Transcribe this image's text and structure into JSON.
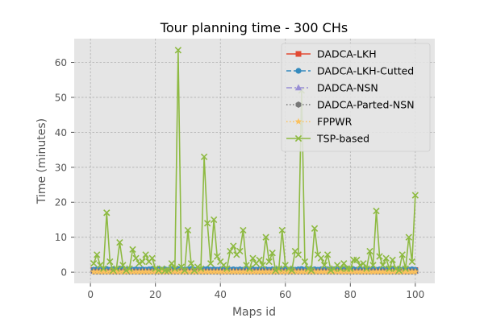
{
  "chart_data": {
    "type": "line",
    "title": "Tour planning time - 300 CHs",
    "xlabel": "Maps id",
    "ylabel": "Time (minutes)",
    "xlim": [
      -5,
      106
    ],
    "ylim": [
      -3.2,
      66.8
    ],
    "xticks": [
      0,
      20,
      40,
      60,
      80,
      100
    ],
    "yticks": [
      0,
      10,
      20,
      30,
      40,
      50,
      60
    ],
    "grid": true,
    "legend_position": "top-right",
    "x": [
      1,
      2,
      3,
      4,
      5,
      6,
      7,
      8,
      9,
      10,
      11,
      12,
      13,
      14,
      15,
      16,
      17,
      18,
      19,
      20,
      21,
      22,
      23,
      24,
      25,
      26,
      27,
      28,
      29,
      30,
      31,
      32,
      33,
      34,
      35,
      36,
      37,
      38,
      39,
      40,
      41,
      42,
      43,
      44,
      45,
      46,
      47,
      48,
      49,
      50,
      51,
      52,
      53,
      54,
      55,
      56,
      57,
      58,
      59,
      60,
      61,
      62,
      63,
      64,
      65,
      66,
      67,
      68,
      69,
      70,
      71,
      72,
      73,
      74,
      75,
      76,
      77,
      78,
      79,
      80,
      81,
      82,
      83,
      84,
      85,
      86,
      87,
      88,
      89,
      90,
      91,
      92,
      93,
      94,
      95,
      96,
      97,
      98,
      99,
      100
    ],
    "series": [
      {
        "name": "DADCA-LKH",
        "color": "#E24A33",
        "marker": "square",
        "line": "solid",
        "values": [
          0.6,
          0.6,
          0.6,
          0.6,
          0.6,
          0.6,
          0.6,
          0.6,
          0.6,
          0.6,
          0.6,
          0.6,
          0.6,
          0.6,
          0.6,
          0.6,
          0.6,
          0.6,
          0.6,
          0.6,
          0.6,
          0.6,
          0.6,
          0.6,
          0.6,
          0.6,
          0.6,
          0.6,
          0.6,
          0.6,
          0.6,
          0.6,
          0.6,
          0.6,
          0.6,
          0.6,
          0.6,
          0.6,
          0.6,
          0.6,
          0.6,
          0.6,
          0.6,
          0.6,
          0.6,
          0.6,
          0.6,
          0.6,
          0.6,
          0.6,
          0.6,
          0.6,
          0.6,
          0.6,
          0.6,
          0.6,
          0.6,
          0.6,
          0.6,
          0.6,
          0.6,
          0.6,
          0.6,
          0.6,
          0.6,
          0.6,
          0.6,
          0.6,
          0.6,
          0.6,
          0.6,
          0.6,
          0.6,
          0.6,
          0.6,
          0.6,
          0.6,
          0.6,
          0.6,
          0.6,
          0.6,
          0.6,
          0.6,
          0.6,
          0.6,
          0.6,
          0.6,
          0.6,
          0.6,
          0.6,
          0.6,
          0.6,
          0.6,
          0.6,
          0.6,
          0.6,
          0.6,
          0.6,
          0.6,
          0.6
        ]
      },
      {
        "name": "DADCA-LKH-Cutted",
        "color": "#348ABD",
        "marker": "circle",
        "line": "dashed",
        "values": [
          0.7,
          0.8,
          0.7,
          0.8,
          0.9,
          0.7,
          0.8,
          0.7,
          1.0,
          0.8,
          0.7,
          0.8,
          0.7,
          0.8,
          0.7,
          0.8,
          0.7,
          0.8,
          0.9,
          0.7,
          0.8,
          0.7,
          0.8,
          0.7,
          0.8,
          0.7,
          0.9,
          0.8,
          0.7,
          0.8,
          0.9,
          0.7,
          0.8,
          0.7,
          0.8,
          0.9,
          0.7,
          0.8,
          0.7,
          0.8,
          0.7,
          0.8,
          0.7,
          0.8,
          0.7,
          0.8,
          0.7,
          0.8,
          0.7,
          0.8,
          0.7,
          0.8,
          0.7,
          0.8,
          0.7,
          0.8,
          0.7,
          0.8,
          0.7,
          0.8,
          0.7,
          0.8,
          0.7,
          0.8,
          0.9,
          0.7,
          0.8,
          0.7,
          0.8,
          0.7,
          0.8,
          0.7,
          0.8,
          0.7,
          0.8,
          0.7,
          0.8,
          0.7,
          0.8,
          0.7,
          0.8,
          0.7,
          0.8,
          0.7,
          0.8,
          0.7,
          0.8,
          0.7,
          0.8,
          0.7,
          0.8,
          0.7,
          0.8,
          0.7,
          0.8,
          0.7,
          0.8,
          0.7,
          0.8,
          0.7
        ]
      },
      {
        "name": "DADCA-NSN",
        "color": "#988ED5",
        "marker": "triangle",
        "line": "dashdot",
        "values": [
          0.3,
          0.3,
          0.3,
          0.3,
          0.3,
          0.3,
          0.3,
          0.3,
          0.3,
          0.3,
          0.3,
          0.3,
          0.3,
          0.3,
          0.3,
          0.3,
          0.3,
          0.3,
          0.3,
          0.3,
          0.3,
          0.3,
          0.3,
          0.3,
          0.3,
          0.3,
          0.3,
          0.3,
          0.3,
          0.3,
          0.3,
          0.3,
          0.3,
          0.3,
          0.3,
          0.3,
          0.3,
          0.3,
          0.3,
          0.3,
          0.3,
          0.3,
          0.3,
          0.3,
          0.3,
          0.3,
          0.3,
          0.3,
          0.3,
          0.3,
          0.3,
          0.3,
          0.3,
          0.3,
          0.3,
          0.3,
          0.3,
          0.3,
          0.3,
          0.3,
          0.3,
          0.3,
          0.3,
          0.3,
          0.3,
          0.3,
          0.3,
          0.3,
          0.3,
          0.3,
          0.3,
          0.3,
          0.3,
          0.3,
          0.3,
          0.3,
          0.3,
          0.3,
          0.3,
          0.3,
          0.3,
          0.3,
          0.3,
          0.3,
          0.3,
          0.3,
          0.3,
          0.3,
          0.3,
          0.3,
          0.3,
          0.3,
          0.3,
          0.3,
          0.3,
          0.3,
          0.3,
          0.3,
          0.3,
          0.3
        ]
      },
      {
        "name": "DADCA-Parted-NSN",
        "color": "#777777",
        "marker": "hexagon",
        "line": "dotted",
        "values": [
          0.2,
          0.2,
          0.2,
          0.2,
          0.2,
          0.2,
          0.2,
          0.2,
          0.2,
          0.2,
          0.2,
          0.2,
          0.2,
          0.2,
          0.2,
          0.2,
          0.2,
          0.2,
          0.2,
          0.2,
          0.2,
          0.2,
          0.2,
          0.2,
          0.2,
          0.2,
          0.2,
          0.2,
          0.2,
          0.2,
          0.2,
          0.2,
          0.2,
          0.2,
          0.2,
          0.2,
          0.2,
          0.2,
          0.2,
          0.2,
          0.2,
          0.2,
          0.2,
          0.2,
          0.2,
          0.2,
          0.2,
          0.2,
          0.2,
          0.2,
          0.2,
          0.2,
          0.2,
          0.2,
          0.2,
          0.2,
          0.2,
          0.2,
          0.2,
          0.2,
          0.2,
          0.2,
          0.2,
          0.2,
          0.2,
          0.2,
          0.2,
          0.2,
          0.2,
          0.2,
          0.2,
          0.2,
          0.2,
          0.2,
          0.2,
          0.2,
          0.2,
          0.2,
          0.2,
          0.2,
          0.2,
          0.2,
          0.2,
          0.2,
          0.2,
          0.2,
          0.2,
          0.2,
          0.2,
          0.2,
          0.2,
          0.2,
          0.2,
          0.2,
          0.2,
          0.2,
          0.2,
          0.2,
          0.2,
          0.2
        ]
      },
      {
        "name": "FPPWR",
        "color": "#FBC15E",
        "marker": "star",
        "line": "dotted",
        "values": [
          0.1,
          0.1,
          0.1,
          0.1,
          0.1,
          0.1,
          0.1,
          0.1,
          0.1,
          0.1,
          0.1,
          0.1,
          0.1,
          0.1,
          0.1,
          0.1,
          0.1,
          0.1,
          0.1,
          0.1,
          0.1,
          0.1,
          0.1,
          0.1,
          0.1,
          0.1,
          0.1,
          0.1,
          0.1,
          0.1,
          0.1,
          0.1,
          0.1,
          0.1,
          0.1,
          0.1,
          0.1,
          0.1,
          0.1,
          0.1,
          0.1,
          0.1,
          0.1,
          0.1,
          0.1,
          0.1,
          0.1,
          0.1,
          0.1,
          0.1,
          0.1,
          0.1,
          0.1,
          0.1,
          0.1,
          0.1,
          0.1,
          0.1,
          0.1,
          0.1,
          0.1,
          0.1,
          0.1,
          0.1,
          0.1,
          0.1,
          0.1,
          0.1,
          0.1,
          0.1,
          0.1,
          0.1,
          0.1,
          0.1,
          0.1,
          0.1,
          0.1,
          0.1,
          0.1,
          0.1,
          0.1,
          0.1,
          0.1,
          0.1,
          0.1,
          0.1,
          0.1,
          0.1,
          0.1,
          0.1,
          0.1,
          0.1,
          0.1,
          0.1,
          0.1,
          0.1,
          0.1,
          0.1,
          0.1,
          0.1
        ]
      },
      {
        "name": "TSP-based",
        "color": "#8EBA42",
        "marker": "x",
        "line": "solid",
        "values": [
          2.5,
          5.0,
          2.0,
          1.0,
          17.0,
          3.0,
          0.5,
          1.0,
          8.5,
          2.0,
          0.5,
          1.0,
          6.5,
          4.0,
          2.5,
          3.0,
          5.0,
          3.0,
          4.0,
          1.0,
          0.5,
          1.0,
          0.5,
          0.5,
          2.5,
          1.0,
          63.5,
          1.5,
          0.5,
          12.0,
          2.5,
          0.5,
          1.5,
          1.0,
          33.0,
          14.0,
          2.5,
          15.0,
          4.5,
          3.0,
          2.0,
          1.0,
          6.0,
          7.5,
          5.0,
          6.0,
          12.0,
          2.0,
          1.0,
          4.0,
          2.5,
          3.5,
          2.0,
          10.0,
          3.0,
          5.5,
          0.5,
          1.0,
          12.0,
          2.0,
          1.0,
          0.5,
          6.0,
          5.0,
          52.0,
          3.0,
          1.0,
          0.5,
          12.5,
          5.0,
          4.0,
          2.0,
          5.0,
          0.5,
          1.0,
          2.0,
          1.0,
          2.5,
          1.0,
          1.0,
          3.5,
          3.5,
          2.0,
          2.5,
          1.0,
          6.0,
          2.0,
          17.5,
          4.5,
          2.0,
          4.0,
          1.0,
          3.5,
          1.0,
          0.5,
          5.0,
          1.0,
          10.0,
          3.0,
          22.0
        ]
      }
    ]
  }
}
